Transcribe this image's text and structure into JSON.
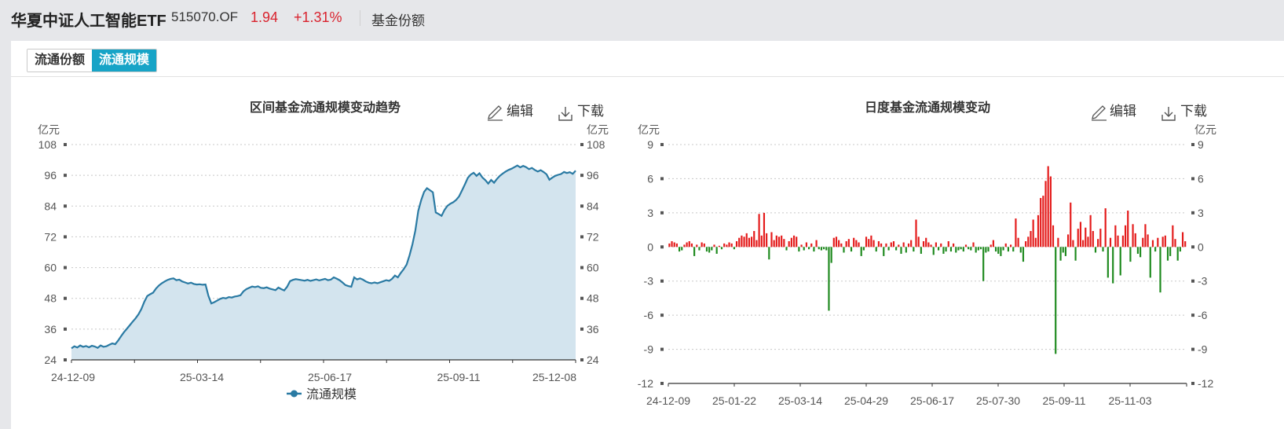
{
  "header": {
    "fund_name": "华夏中证人工智能ETF",
    "fund_code": "515070.OF",
    "price": "1.94",
    "change": "+1.31%",
    "menu_item": "基金份额"
  },
  "tabs": [
    {
      "label": "流通份额",
      "active": false
    },
    {
      "label": "流通规模",
      "active": true
    }
  ],
  "toolbar": {
    "edit_label": "编辑",
    "download_label": "下载"
  },
  "colors": {
    "accent": "#17a4c7",
    "line": "#2a7aa3",
    "area": "#d3e4ee",
    "up": "#e41a1a",
    "down": "#1e8a1e"
  },
  "chart_data": [
    {
      "type": "area",
      "title": "区间基金流通规模变动趋势",
      "unit": "亿元",
      "ylim": [
        24,
        108
      ],
      "yticks": [
        24,
        36,
        48,
        60,
        72,
        84,
        96,
        108
      ],
      "xticks": [
        "24-12-09",
        "25-03-14",
        "25-06-17",
        "25-09-11",
        "25-12-08"
      ],
      "grid": true,
      "legend_position": "bottom",
      "series": [
        {
          "name": "流通规模",
          "values": [
            28.5,
            29.3,
            28.8,
            29.6,
            29.1,
            29.4,
            28.9,
            29.5,
            29.2,
            28.7,
            29.6,
            29.1,
            29.3,
            29.9,
            30.4,
            30.1,
            31.5,
            33.2,
            34.8,
            36.1,
            37.5,
            38.9,
            40.2,
            41.8,
            43.9,
            46.7,
            48.9,
            49.6,
            50.2,
            51.8,
            53.0,
            53.9,
            54.6,
            55.2,
            55.6,
            55.8,
            55.1,
            55.3,
            54.6,
            54.2,
            53.8,
            54.1,
            53.6,
            53.4,
            53.5,
            53.3,
            53.4,
            49.0,
            46.0,
            46.5,
            47.1,
            47.8,
            48.2,
            48.0,
            48.5,
            48.3,
            48.7,
            48.9,
            49.2,
            50.7,
            51.6,
            52.1,
            52.6,
            52.4,
            52.7,
            52.1,
            52.0,
            52.3,
            51.8,
            51.5,
            51.2,
            52.2,
            51.6,
            51.1,
            52.5,
            54.7,
            55.2,
            55.5,
            55.3,
            55.1,
            54.9,
            55.2,
            54.8,
            55.1,
            55.4,
            55.0,
            55.3,
            55.6,
            55.1,
            55.3,
            56.2,
            55.7,
            55.1,
            54.2,
            53.2,
            52.8,
            52.5,
            56.2,
            55.4,
            55.8,
            55.3,
            54.6,
            54.1,
            53.9,
            54.2,
            53.9,
            54.3,
            54.7,
            55.1,
            54.8,
            55.6,
            56.9,
            56.2,
            57.9,
            59.4,
            61.2,
            64.8,
            69.1,
            74.5,
            82.1,
            86.3,
            89.5,
            91.0,
            90.2,
            89.4,
            81.5,
            80.9,
            80.2,
            82.5,
            84.1,
            84.9,
            85.5,
            86.4,
            87.8,
            90.1,
            92.5,
            95.0,
            96.3,
            97.0,
            95.8,
            96.8,
            95.2,
            94.1,
            92.8,
            94.2,
            93.1,
            94.6,
            95.8,
            96.7,
            97.5,
            98.1,
            98.6,
            99.2,
            99.8,
            99.1,
            99.7,
            99.2,
            98.4,
            98.9,
            98.1,
            97.5,
            98.0,
            97.3,
            96.4,
            94.3,
            95.1,
            95.8,
            96.2,
            96.5,
            97.3,
            96.9,
            97.2,
            96.6,
            97.8
          ]
        }
      ]
    },
    {
      "type": "bar",
      "title": "日度基金流通规模变动",
      "unit": "亿元",
      "ylim": [
        -12,
        9
      ],
      "yticks": [
        -12,
        -9,
        -6,
        -3,
        0,
        3,
        6,
        9
      ],
      "xticks": [
        "24-12-09",
        "25-01-22",
        "25-03-14",
        "25-04-29",
        "25-06-17",
        "25-07-30",
        "25-09-11",
        "25-11-03"
      ],
      "grid": true,
      "series": [
        {
          "name": "",
          "values": [
            0.3,
            0.5,
            0.4,
            0.3,
            -0.4,
            -0.3,
            0.2,
            0.4,
            0.5,
            0.3,
            -0.8,
            0.2,
            -0.3,
            0.4,
            0.3,
            -0.4,
            -0.5,
            -0.3,
            0.2,
            -0.6,
            0.1,
            -0.2,
            0.3,
            0.2,
            0.4,
            0.3,
            -0.2,
            0.5,
            0.8,
            1.0,
            0.9,
            1.2,
            0.8,
            0.9,
            1.4,
            0.6,
            2.9,
            1.0,
            3.0,
            1.2,
            -1.1,
            1.3,
            0.6,
            1.0,
            0.9,
            1.0,
            0.7,
            -0.3,
            0.5,
            0.8,
            1.0,
            0.9,
            -0.4,
            0.2,
            -0.3,
            0.4,
            -0.2,
            0.3,
            -0.4,
            0.6,
            -0.2,
            -0.3,
            -0.2,
            -0.3,
            -5.6,
            -1.4,
            0.8,
            0.9,
            0.6,
            0.3,
            -0.5,
            0.5,
            0.7,
            -0.4,
            0.8,
            0.6,
            0.4,
            -0.8,
            -0.3,
            0.9,
            0.7,
            1.0,
            0.6,
            -0.4,
            0.5,
            0.3,
            -0.8,
            0.3,
            -0.3,
            0.4,
            0.5,
            -0.3,
            0.2,
            -0.6,
            0.4,
            -0.5,
            0.3,
            0.6,
            -0.4,
            2.4,
            0.9,
            -0.6,
            0.5,
            0.8,
            0.4,
            0.2,
            -0.7,
            0.4,
            -0.3,
            0.3,
            -0.6,
            -0.4,
            0.5,
            -0.4,
            0.3,
            -0.5,
            -0.3,
            -0.2,
            -0.4,
            0.2,
            -0.2,
            -0.3,
            0.4,
            -0.5,
            -0.3,
            -0.2,
            -3.0,
            -0.5,
            -0.4,
            0.2,
            0.6,
            -0.4,
            -0.6,
            -0.8,
            -0.3,
            0.3,
            -0.4,
            0.2,
            -0.4,
            2.5,
            0.8,
            -0.5,
            -1.3,
            0.5,
            0.9,
            1.4,
            2.4,
            0.8,
            2.8,
            4.3,
            4.5,
            5.8,
            7.1,
            6.2,
            1.9,
            -9.4,
            0.8,
            -1.2,
            -0.5,
            -0.8,
            1.1,
            3.9,
            0.6,
            -1.2,
            1.6,
            2.2,
            0.6,
            1.7,
            0.9,
            2.8,
            1.4,
            -0.5,
            0.7,
            1.6,
            -0.4,
            3.4,
            -2.7,
            0.8,
            -3.2,
            1.9,
            1.0,
            -2.5,
            1.0,
            1.9,
            3.2,
            -1.3,
            2.0,
            1.2,
            -0.6,
            -0.9,
            0.8,
            2.0,
            1.1,
            -2.7,
            0.6,
            -0.4,
            0.8,
            -4.0,
            0.9,
            1.0,
            -1.2,
            -0.8,
            1.9,
            0.7,
            -1.2,
            -0.4,
            1.3,
            0.5
          ]
        }
      ]
    }
  ]
}
